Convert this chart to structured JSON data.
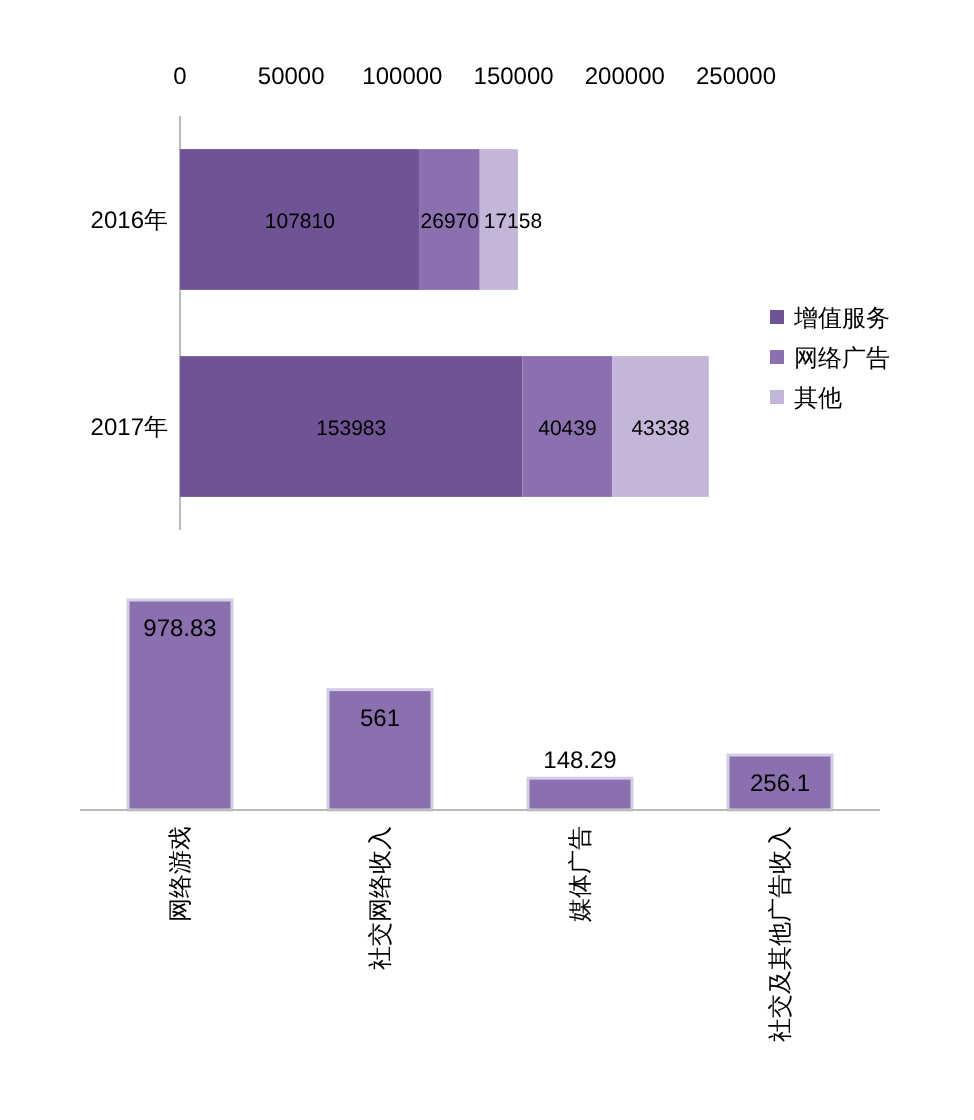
{
  "chart_data": [
    {
      "type": "bar",
      "orientation": "horizontal",
      "stacked": true,
      "categories": [
        "2016年",
        "2017年"
      ],
      "series": [
        {
          "name": "增值服务",
          "color": "#6e5494",
          "values": [
            107810,
            153983
          ]
        },
        {
          "name": "网络广告",
          "color": "#8b70b0",
          "values": [
            26970,
            40439
          ]
        },
        {
          "name": "其他",
          "color": "#c3b6d9",
          "values": [
            17158,
            43338
          ]
        }
      ],
      "xlim": [
        0,
        250000
      ],
      "xticks": [
        0,
        50000,
        100000,
        150000,
        200000,
        250000
      ],
      "data_labels": true,
      "legend": "right"
    },
    {
      "type": "bar",
      "categories": [
        "网络游戏",
        "社交网络收入",
        "媒体广告",
        "社交及其他广告收入"
      ],
      "values": [
        978.83,
        561,
        148.29,
        256.1
      ],
      "color": "#8b70b0",
      "data_labels": true
    }
  ]
}
